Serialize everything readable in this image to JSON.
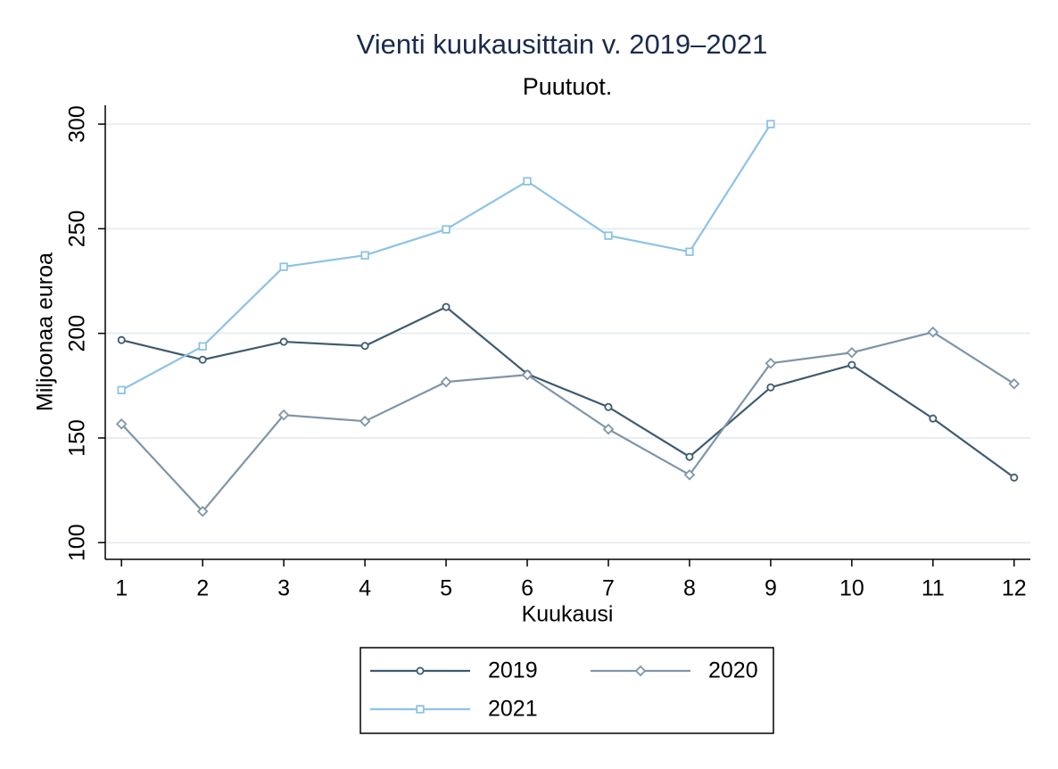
{
  "chart_data": {
    "type": "line",
    "title": "Vienti kuukausittain v. 2019–2021",
    "subtitle": "Puutuot.",
    "x_label": "Kuukausi",
    "y_label": "Miljoonaa euroa",
    "x": [
      1,
      2,
      3,
      4,
      5,
      6,
      7,
      8,
      9,
      10,
      11,
      12
    ],
    "series": [
      {
        "name": "2019",
        "color": "#3e5b70",
        "marker": "circle",
        "values": [
          196.8,
          187.4,
          196,
          194,
          212.6,
          180.6,
          164.8,
          141,
          174.2,
          184.9,
          159.3,
          131.1
        ]
      },
      {
        "name": "2020",
        "color": "#7f95a8",
        "marker": "diamond",
        "values": [
          156.7,
          114.9,
          161,
          158,
          176.8,
          180.2,
          154.2,
          132.4,
          185.7,
          190.8,
          200.6,
          175.9
        ]
      },
      {
        "name": "2021",
        "color": "#8dc3e6",
        "marker": "square",
        "values": [
          172.9,
          193.8,
          231.8,
          237.3,
          249.7,
          272.7,
          246.7,
          239,
          300,
          null,
          null,
          null
        ]
      }
    ],
    "xlim": [
      0.8,
      12.2
    ],
    "xticks": [
      1,
      2,
      3,
      4,
      5,
      6,
      7,
      8,
      9,
      10,
      11,
      12
    ],
    "ylim": [
      92,
      309
    ],
    "yticks": [
      100,
      150,
      200,
      250,
      300
    ],
    "grid": true,
    "legend": "bottom"
  }
}
